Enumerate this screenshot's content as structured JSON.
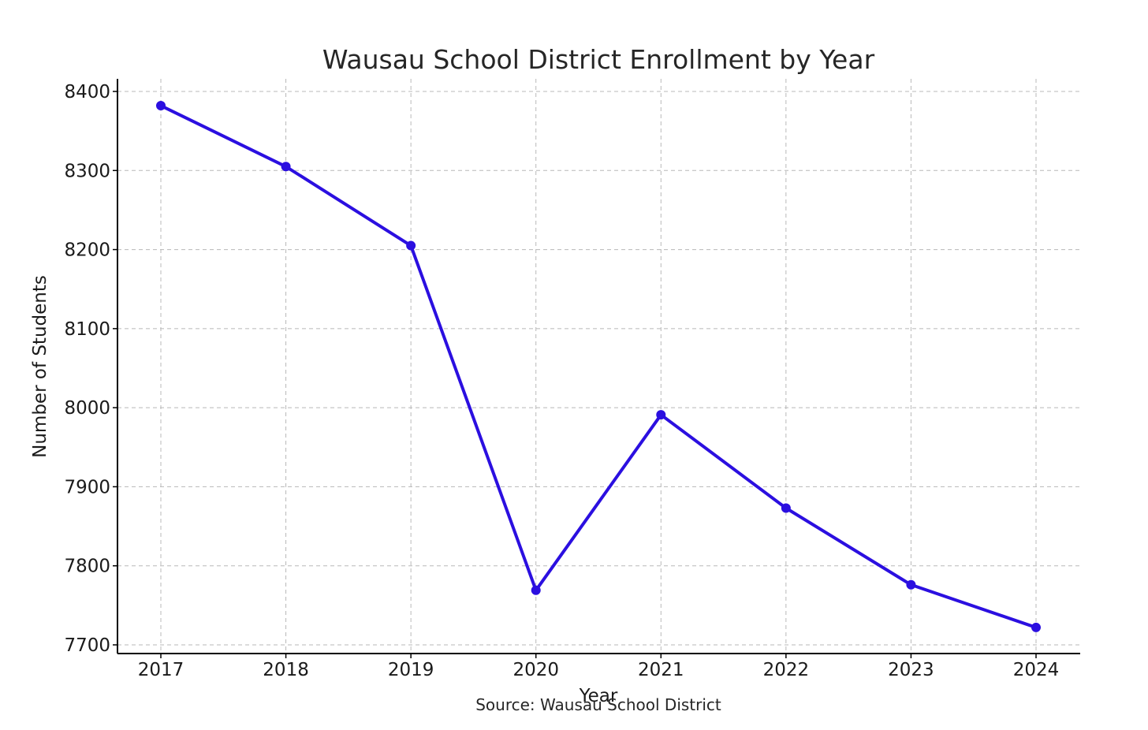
{
  "chart_data": {
    "type": "line",
    "title": "Wausau School District Enrollment by Year",
    "xlabel": "Year",
    "ylabel": "Number of Students",
    "source": "Source: Wausau School District",
    "x": [
      "2017",
      "2018",
      "2019",
      "2020",
      "2021",
      "2022",
      "2023",
      "2024"
    ],
    "series": [
      {
        "values": [
          8382,
          8305,
          8205,
          7769,
          7991,
          7873,
          7776,
          7722
        ]
      }
    ],
    "y_ticks": [
      "7700",
      "7800",
      "7900",
      "8000",
      "8100",
      "8200",
      "8300",
      "8400"
    ],
    "ylim": [
      7690,
      8415
    ],
    "grid": true,
    "line_color": "#2b0fe0",
    "marker": "circle"
  }
}
